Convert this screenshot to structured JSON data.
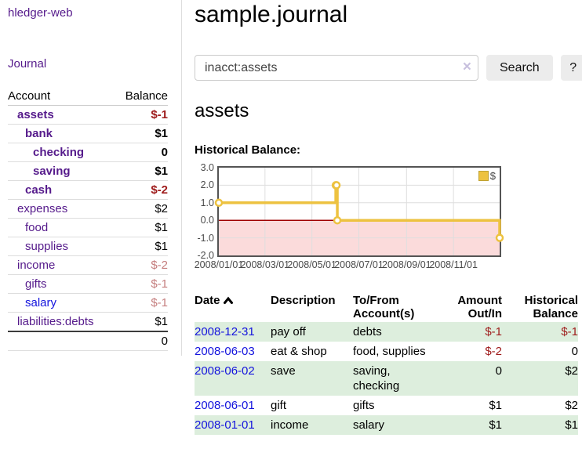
{
  "sidebar": {
    "app_title": "hledger-web",
    "journal_link": "Journal",
    "accounts_header": {
      "account": "Account",
      "balance": "Balance"
    },
    "accounts": [
      {
        "name": "assets",
        "indent": 1,
        "bold": true,
        "blue": false,
        "balance": "$-1",
        "bal_style": "neg"
      },
      {
        "name": "bank",
        "indent": 2,
        "bold": true,
        "blue": false,
        "balance": "$1",
        "bal_style": "pos"
      },
      {
        "name": "checking",
        "indent": 3,
        "bold": true,
        "blue": false,
        "balance": "0",
        "bal_style": "pos"
      },
      {
        "name": "saving",
        "indent": 3,
        "bold": true,
        "blue": false,
        "balance": "$1",
        "bal_style": "pos"
      },
      {
        "name": "cash",
        "indent": 2,
        "bold": true,
        "blue": false,
        "balance": "$-2",
        "bal_style": "neg"
      },
      {
        "name": "expenses",
        "indent": 1,
        "bold": false,
        "blue": false,
        "balance": "$2",
        "bal_style": "pos"
      },
      {
        "name": "food",
        "indent": 2,
        "bold": false,
        "blue": false,
        "balance": "$1",
        "bal_style": "pos"
      },
      {
        "name": "supplies",
        "indent": 2,
        "bold": false,
        "blue": false,
        "balance": "$1",
        "bal_style": "pos"
      },
      {
        "name": "income",
        "indent": 1,
        "bold": false,
        "blue": false,
        "balance": "$-2",
        "bal_style": "negfade"
      },
      {
        "name": "gifts",
        "indent": 2,
        "bold": false,
        "blue": false,
        "balance": "$-1",
        "bal_style": "negfade"
      },
      {
        "name": "salary",
        "indent": 2,
        "bold": false,
        "blue": true,
        "balance": "$-1",
        "bal_style": "negfade"
      },
      {
        "name": "liabilities:debts",
        "indent": 1,
        "bold": false,
        "blue": false,
        "balance": "$1",
        "bal_style": "pos"
      }
    ],
    "total": "0"
  },
  "header": {
    "title": "sample.journal"
  },
  "search": {
    "query": "inacct:assets",
    "clear_icon": "×",
    "button_label": "Search",
    "help_label": "?"
  },
  "main": {
    "account_heading": "assets",
    "chart_title": "Historical Balance:"
  },
  "chart_data": {
    "type": "line",
    "step": true,
    "title": "Historical Balance:",
    "xdomain": [
      "2008-01-01",
      "2008-12-31"
    ],
    "ylim": [
      -2.0,
      3.0
    ],
    "yticks": [
      3.0,
      2.0,
      1.0,
      0.0,
      -1.0,
      -2.0
    ],
    "xticks": [
      {
        "label": "2008/01/01",
        "date": "2008-01-01"
      },
      {
        "label": "2008/03/01",
        "date": "2008-03-01"
      },
      {
        "label": "2008/05/01",
        "date": "2008-05-01"
      },
      {
        "label": "2008/07/01",
        "date": "2008-07-01"
      },
      {
        "label": "2008/09/01",
        "date": "2008-09-01"
      },
      {
        "label": "2008/11/01",
        "date": "2008-11-01"
      }
    ],
    "series": [
      {
        "name": "$",
        "color": "#EDC240",
        "points": [
          [
            "2008-01-01",
            1
          ],
          [
            "2008-06-01",
            2
          ],
          [
            "2008-06-02",
            2
          ],
          [
            "2008-06-03",
            0
          ],
          [
            "2008-12-31",
            -1
          ]
        ]
      }
    ],
    "legend_position": "top-right",
    "grid": true,
    "colors": {
      "grid": "#dedede",
      "border": "#545454",
      "zero_line": "#a00000",
      "negative_fill": "#fbdbdb"
    }
  },
  "register": {
    "headers": {
      "date": "Date",
      "description": "Description",
      "tofrom": "To/From Account(s)",
      "amount": "Amount Out/In",
      "balance": "Historical Balance"
    },
    "rows": [
      {
        "date": "2008-12-31",
        "description": "pay off",
        "tofrom": "debts",
        "amount": "$-1",
        "amount_neg": true,
        "balance": "$-1",
        "balance_neg": true
      },
      {
        "date": "2008-06-03",
        "description": "eat & shop",
        "tofrom": "food, supplies",
        "amount": "$-2",
        "amount_neg": true,
        "balance": "0",
        "balance_neg": false
      },
      {
        "date": "2008-06-02",
        "description": "save",
        "tofrom": "saving, checking",
        "amount": "0",
        "amount_neg": false,
        "balance": "$2",
        "balance_neg": false
      },
      {
        "date": "2008-06-01",
        "description": "gift",
        "tofrom": "gifts",
        "amount": "$1",
        "amount_neg": false,
        "balance": "$2",
        "balance_neg": false
      },
      {
        "date": "2008-01-01",
        "description": "income",
        "tofrom": "salary",
        "amount": "$1",
        "amount_neg": false,
        "balance": "$1",
        "balance_neg": false
      }
    ]
  }
}
